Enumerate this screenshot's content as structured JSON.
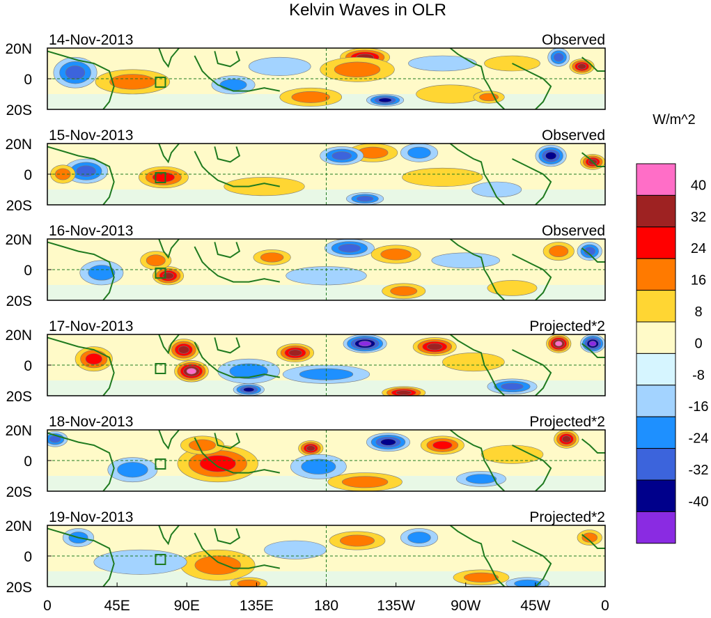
{
  "chart_data": {
    "type": "heatmap",
    "title": "Kelvin Waves in OLR",
    "colorbar": {
      "units": "W/m^2",
      "tick_labels": [
        "40",
        "32",
        "24",
        "16",
        "8",
        "0",
        "-8",
        "-16",
        "-24",
        "-32",
        "-40"
      ],
      "colors": [
        "#ff6ec7",
        "#9e2222",
        "#ff0000",
        "#ff7a00",
        "#ffd633",
        "#fffac8",
        "#d6f5ff",
        "#a3d3ff",
        "#1e90ff",
        "#3c64dc",
        "#00008b",
        "#8a2be2"
      ]
    },
    "x_ticks": [
      {
        "lon": 0,
        "label": "0"
      },
      {
        "lon": 45,
        "label": "45E"
      },
      {
        "lon": 90,
        "label": "90E"
      },
      {
        "lon": 135,
        "label": "135E"
      },
      {
        "lon": 180,
        "label": "180"
      },
      {
        "lon": 225,
        "label": "135W"
      },
      {
        "lon": 270,
        "label": "90W"
      },
      {
        "lon": 315,
        "label": "45W"
      },
      {
        "lon": 360,
        "label": "0"
      }
    ],
    "y_ticks": [
      {
        "lat": 20,
        "label": "20N"
      },
      {
        "lat": 0,
        "label": "0"
      },
      {
        "lat": -20,
        "label": "20S"
      }
    ],
    "xlim": [
      0,
      360
    ],
    "ylim": [
      -20,
      20
    ],
    "panels": [
      {
        "date": "14-Nov-2013",
        "kind": "Observed",
        "blobs": [
          {
            "lon": 205,
            "lat": 14,
            "v": 32,
            "rx": 16,
            "ry": 6
          },
          {
            "lon": 200,
            "lat": 6,
            "v": 16,
            "rx": 24,
            "ry": 8
          },
          {
            "lon": 345,
            "lat": 8,
            "v": 32,
            "rx": 8,
            "ry": 5
          },
          {
            "lon": 330,
            "lat": 14,
            "v": -24,
            "rx": 7,
            "ry": 6
          },
          {
            "lon": 18,
            "lat": 4,
            "v": -24,
            "rx": 14,
            "ry": 10
          },
          {
            "lon": 55,
            "lat": -2,
            "v": 16,
            "rx": 24,
            "ry": 8
          },
          {
            "lon": 170,
            "lat": -12,
            "v": 16,
            "rx": 20,
            "ry": 6
          },
          {
            "lon": 218,
            "lat": -14,
            "v": -32,
            "rx": 12,
            "ry": 4
          },
          {
            "lon": 150,
            "lat": 8,
            "v": -8,
            "rx": 20,
            "ry": 6
          },
          {
            "lon": 120,
            "lat": -4,
            "v": -16,
            "rx": 14,
            "ry": 6
          },
          {
            "lon": 255,
            "lat": 10,
            "v": -8,
            "rx": 22,
            "ry": 5
          },
          {
            "lon": 260,
            "lat": -10,
            "v": 8,
            "rx": 22,
            "ry": 6
          },
          {
            "lon": 285,
            "lat": -12,
            "v": 16,
            "rx": 10,
            "ry": 4
          },
          {
            "lon": 300,
            "lat": 10,
            "v": 8,
            "rx": 18,
            "ry": 5
          }
        ]
      },
      {
        "date": "15-Nov-2013",
        "kind": "Observed",
        "blobs": [
          {
            "lon": 210,
            "lat": 14,
            "v": 16,
            "rx": 16,
            "ry": 6
          },
          {
            "lon": 190,
            "lat": 12,
            "v": -24,
            "rx": 14,
            "ry": 6
          },
          {
            "lon": 240,
            "lat": 14,
            "v": -16,
            "rx": 12,
            "ry": 6
          },
          {
            "lon": 325,
            "lat": 12,
            "v": -32,
            "rx": 10,
            "ry": 7
          },
          {
            "lon": 352,
            "lat": 8,
            "v": 32,
            "rx": 8,
            "ry": 5
          },
          {
            "lon": 75,
            "lat": -2,
            "v": 24,
            "rx": 16,
            "ry": 7
          },
          {
            "lon": 25,
            "lat": 2,
            "v": -24,
            "rx": 14,
            "ry": 8
          },
          {
            "lon": 10,
            "lat": 0,
            "v": 16,
            "rx": 8,
            "ry": 6
          },
          {
            "lon": 205,
            "lat": -16,
            "v": -24,
            "rx": 12,
            "ry": 4
          },
          {
            "lon": 140,
            "lat": -8,
            "v": 8,
            "rx": 26,
            "ry": 6
          },
          {
            "lon": 255,
            "lat": -2,
            "v": 8,
            "rx": 26,
            "ry": 6
          },
          {
            "lon": 290,
            "lat": -10,
            "v": -8,
            "rx": 16,
            "ry": 5
          }
        ]
      },
      {
        "date": "16-Nov-2013",
        "kind": "Observed",
        "blobs": [
          {
            "lon": 195,
            "lat": 14,
            "v": -24,
            "rx": 16,
            "ry": 6
          },
          {
            "lon": 225,
            "lat": 10,
            "v": 16,
            "rx": 16,
            "ry": 6
          },
          {
            "lon": 330,
            "lat": 12,
            "v": 16,
            "rx": 10,
            "ry": 6
          },
          {
            "lon": 350,
            "lat": 12,
            "v": -24,
            "rx": 8,
            "ry": 6
          },
          {
            "lon": 78,
            "lat": -4,
            "v": 32,
            "rx": 10,
            "ry": 6
          },
          {
            "lon": 70,
            "lat": 6,
            "v": 16,
            "rx": 10,
            "ry": 6
          },
          {
            "lon": 35,
            "lat": -2,
            "v": -16,
            "rx": 14,
            "ry": 8
          },
          {
            "lon": 145,
            "lat": 8,
            "v": 16,
            "rx": 12,
            "ry": 5
          },
          {
            "lon": 180,
            "lat": -4,
            "v": -8,
            "rx": 26,
            "ry": 6
          },
          {
            "lon": 230,
            "lat": -14,
            "v": 16,
            "rx": 14,
            "ry": 5
          },
          {
            "lon": 270,
            "lat": 6,
            "v": -8,
            "rx": 22,
            "ry": 5
          },
          {
            "lon": 300,
            "lat": -12,
            "v": 8,
            "rx": 16,
            "ry": 5
          }
        ]
      },
      {
        "date": "17-Nov-2013",
        "kind": "Projected*2",
        "blobs": [
          {
            "lon": 93,
            "lat": -4,
            "v": 40,
            "rx": 11,
            "ry": 7
          },
          {
            "lon": 88,
            "lat": 10,
            "v": 32,
            "rx": 10,
            "ry": 7
          },
          {
            "lon": 30,
            "lat": 4,
            "v": 24,
            "rx": 12,
            "ry": 8
          },
          {
            "lon": 160,
            "lat": 8,
            "v": 32,
            "rx": 12,
            "ry": 6
          },
          {
            "lon": 205,
            "lat": 14,
            "v": -40,
            "rx": 14,
            "ry": 6
          },
          {
            "lon": 250,
            "lat": 12,
            "v": 32,
            "rx": 14,
            "ry": 6
          },
          {
            "lon": 330,
            "lat": 14,
            "v": 40,
            "rx": 8,
            "ry": 6
          },
          {
            "lon": 352,
            "lat": 14,
            "v": -40,
            "rx": 8,
            "ry": 6
          },
          {
            "lon": 130,
            "lat": -4,
            "v": -16,
            "rx": 20,
            "ry": 8
          },
          {
            "lon": 130,
            "lat": -16,
            "v": -32,
            "rx": 10,
            "ry": 4
          },
          {
            "lon": 230,
            "lat": -18,
            "v": 32,
            "rx": 14,
            "ry": 4
          },
          {
            "lon": 180,
            "lat": -6,
            "v": -16,
            "rx": 28,
            "ry": 6
          },
          {
            "lon": 300,
            "lat": -14,
            "v": -24,
            "rx": 16,
            "ry": 5
          },
          {
            "lon": 275,
            "lat": 2,
            "v": 8,
            "rx": 20,
            "ry": 6
          }
        ]
      },
      {
        "date": "18-Nov-2013",
        "kind": "Projected*2",
        "blobs": [
          {
            "lon": 110,
            "lat": -2,
            "v": 24,
            "rx": 26,
            "ry": 12
          },
          {
            "lon": 100,
            "lat": 10,
            "v": 16,
            "rx": 14,
            "ry": 6
          },
          {
            "lon": 170,
            "lat": 8,
            "v": 32,
            "rx": 8,
            "ry": 5
          },
          {
            "lon": 220,
            "lat": 12,
            "v": -32,
            "rx": 14,
            "ry": 6
          },
          {
            "lon": 255,
            "lat": 10,
            "v": 24,
            "rx": 14,
            "ry": 6
          },
          {
            "lon": 335,
            "lat": 14,
            "v": 32,
            "rx": 8,
            "ry": 6
          },
          {
            "lon": 5,
            "lat": 14,
            "v": -24,
            "rx": 8,
            "ry": 5
          },
          {
            "lon": 55,
            "lat": -6,
            "v": -16,
            "rx": 16,
            "ry": 8
          },
          {
            "lon": 175,
            "lat": -4,
            "v": -16,
            "rx": 18,
            "ry": 8
          },
          {
            "lon": 205,
            "lat": -14,
            "v": 16,
            "rx": 24,
            "ry": 6
          },
          {
            "lon": 280,
            "lat": -12,
            "v": -16,
            "rx": 16,
            "ry": 5
          },
          {
            "lon": 300,
            "lat": 4,
            "v": 8,
            "rx": 20,
            "ry": 6
          }
        ]
      },
      {
        "date": "19-Nov-2013",
        "kind": "Projected*2",
        "blobs": [
          {
            "lon": 110,
            "lat": -6,
            "v": 16,
            "rx": 24,
            "ry": 10
          },
          {
            "lon": 130,
            "lat": -18,
            "v": 16,
            "rx": 12,
            "ry": 4
          },
          {
            "lon": 200,
            "lat": 10,
            "v": 16,
            "rx": 18,
            "ry": 6
          },
          {
            "lon": 240,
            "lat": 12,
            "v": -16,
            "rx": 12,
            "ry": 6
          },
          {
            "lon": 280,
            "lat": -14,
            "v": 16,
            "rx": 18,
            "ry": 5
          },
          {
            "lon": 310,
            "lat": -18,
            "v": -16,
            "rx": 14,
            "ry": 4
          },
          {
            "lon": 20,
            "lat": 12,
            "v": -16,
            "rx": 10,
            "ry": 6
          },
          {
            "lon": 60,
            "lat": -4,
            "v": -8,
            "rx": 30,
            "ry": 8
          },
          {
            "lon": 350,
            "lat": 12,
            "v": 16,
            "rx": 8,
            "ry": 5
          },
          {
            "lon": 160,
            "lat": 4,
            "v": -8,
            "rx": 20,
            "ry": 6
          }
        ]
      }
    ]
  }
}
